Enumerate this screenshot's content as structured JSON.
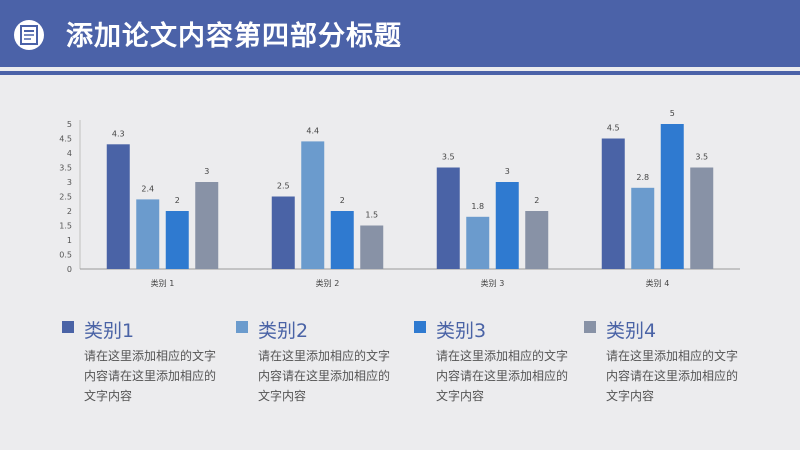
{
  "header": {
    "title": "添加论文内容第四部分标题"
  },
  "colors": {
    "header_bg": "#4b62a8",
    "series": [
      "#4a63a6",
      "#6b9bcd",
      "#2f7ad0",
      "#8892a6"
    ]
  },
  "legend": [
    {
      "name": "类别1",
      "desc": "请在这里添加相应的文字内容请在这里添加相应的文字内容"
    },
    {
      "name": "类别2",
      "desc": "请在这里添加相应的文字内容请在这里添加相应的文字内容"
    },
    {
      "name": "类别3",
      "desc": "请在这里添加相应的文字内容请在这里添加相应的文字内容"
    },
    {
      "name": "类别4",
      "desc": "请在这里添加相应的文字内容请在这里添加相应的文字内容"
    }
  ],
  "chart_data": {
    "type": "bar",
    "categories": [
      "类别 1",
      "类别 2",
      "类别 3",
      "类别 4"
    ],
    "series": [
      {
        "name": "类别1",
        "values": [
          4.3,
          2.5,
          3.5,
          4.5
        ]
      },
      {
        "name": "类别2",
        "values": [
          2.4,
          4.4,
          1.8,
          2.8
        ]
      },
      {
        "name": "类别3",
        "values": [
          2,
          2,
          3,
          5
        ]
      },
      {
        "name": "类别4",
        "values": [
          3,
          1.5,
          2,
          3.5
        ]
      }
    ],
    "yticks": [
      "0",
      "0.5",
      "1",
      "1.5",
      "2",
      "2.5",
      "3",
      "3.5",
      "4",
      "4.5",
      "5"
    ],
    "ylim": [
      0,
      5
    ],
    "grid": false,
    "legend_position": "bottom"
  }
}
